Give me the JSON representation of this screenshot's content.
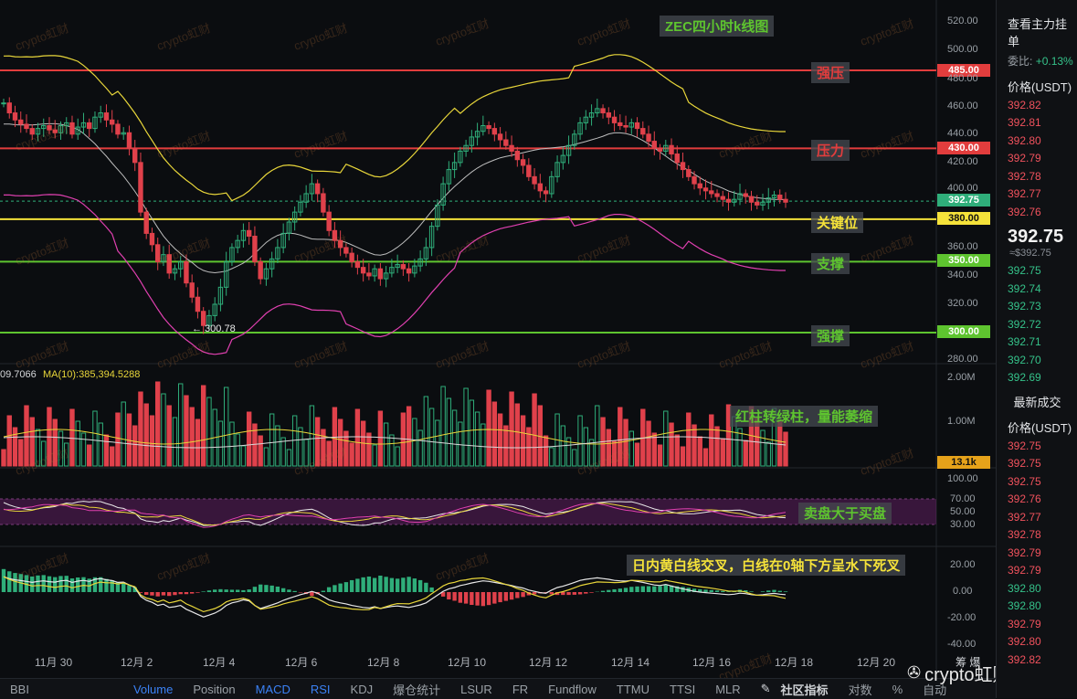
{
  "sidebar": {
    "header": "查看主力挂单",
    "ratio_label": "委比:",
    "ratio_value": "+0.13%",
    "price_header": "价格(USDT)",
    "asks": [
      "392.82",
      "392.81",
      "392.80",
      "392.79",
      "392.78",
      "392.77",
      "392.76"
    ],
    "last_price": "392.75",
    "last_price_sub": "≈$392.75",
    "bids": [
      "392.75",
      "392.74",
      "392.73",
      "392.72",
      "392.71",
      "392.70",
      "392.69"
    ],
    "trades_header": "最新成交",
    "trades_price_header": "价格(USDT)",
    "trades": [
      {
        "p": "392.75",
        "c": "red"
      },
      {
        "p": "392.75",
        "c": "red"
      },
      {
        "p": "392.75",
        "c": "red"
      },
      {
        "p": "392.76",
        "c": "red"
      },
      {
        "p": "392.77",
        "c": "red"
      },
      {
        "p": "392.78",
        "c": "red"
      },
      {
        "p": "392.79",
        "c": "red"
      },
      {
        "p": "392.79",
        "c": "red"
      },
      {
        "p": "392.80",
        "c": "green"
      },
      {
        "p": "392.80",
        "c": "green"
      },
      {
        "p": "392.79",
        "c": "red"
      },
      {
        "p": "392.80",
        "c": "red"
      },
      {
        "p": "392.82",
        "c": "red"
      }
    ]
  },
  "price_axis": [
    "520.00",
    "500.00",
    "480.00",
    "460.00",
    "440.00",
    "420.00",
    "400.00",
    "360.00",
    "340.00",
    "320.00",
    "280.00"
  ],
  "levels": {
    "strong_resist": {
      "value": "485.00",
      "label": "强压",
      "color": "#e23d3d"
    },
    "resist": {
      "value": "430.00",
      "label": "压力",
      "color": "#e23d3d"
    },
    "current": {
      "value": "392.75",
      "color": "#2fae7a"
    },
    "key": {
      "value": "380.00",
      "label": "关键位",
      "color": "#f5e23a"
    },
    "support": {
      "value": "350.00",
      "label": "支撑",
      "color": "#5ec42f"
    },
    "strong_support": {
      "value": "300.00",
      "label": "强撑",
      "color": "#5ec42f"
    }
  },
  "low_marker": "← 300.78",
  "annotations": {
    "title": "ZEC四小时k线图",
    "volume_note": "红柱转绿柱，量能萎缩",
    "rsi_note": "卖盘大于买盘",
    "macd_note": "日内黄白线交叉，白线在0轴下方呈水下死叉"
  },
  "volume": {
    "ma_text_a": "09.7066",
    "ma_text_b": "MA(10):385,394.5288",
    "axis": [
      "2.00M",
      "1.00M"
    ],
    "last": "13.1k"
  },
  "rsi_axis": [
    "100.00",
    "70.00",
    "50.00",
    "30.00"
  ],
  "macd_axis": [
    "20.00",
    "0.00",
    "-20.00",
    "-40.00"
  ],
  "dates": [
    "11月 30",
    "12月 2",
    "12月 4",
    "12月 6",
    "12月 8",
    "12月 10",
    "12月 12",
    "12月 14",
    "12月 16",
    "12月 18",
    "12月 20"
  ],
  "corner_label": "筹 爆",
  "tabs": [
    "BBI",
    "Volume",
    "Position",
    "MACD",
    "RSI",
    "KDJ",
    "爆仓统计",
    "LSUR",
    "FR",
    "Fundflow",
    "TTMU",
    "TTSI",
    "MLR"
  ],
  "active_tabs": [
    "Volume",
    "MACD",
    "RSI"
  ],
  "community_label": "社区指标",
  "right_tools": [
    "对数",
    "%",
    "自动"
  ],
  "brand": "crypto虹财",
  "watermark_text": "crypto虹财",
  "colors": {
    "up": "#2fae7a",
    "down": "#e0414b",
    "ma_yellow": "#e8d63a",
    "ma_white": "#d9d9d9",
    "band_pink": "#e040b0"
  }
}
